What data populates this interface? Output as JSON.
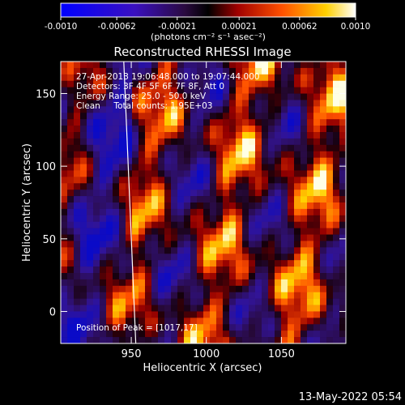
{
  "colorbar": {
    "ticks": [
      "-0.0010",
      "-0.00062",
      "-0.00021",
      "0.00021",
      "0.00062",
      "0.0010"
    ],
    "tick_values": [
      -0.001,
      -0.00062,
      -0.00021,
      0.00021,
      0.00062,
      0.001
    ],
    "range": [
      -0.001,
      0.001
    ],
    "units": "(photons cm⁻² s⁻¹ asec⁻²)"
  },
  "chart_data": {
    "type": "heatmap",
    "title": "Reconstructed RHESSI Image",
    "xlabel": "Heliocentric X (arcsec)",
    "ylabel": "Heliocentric Y (arcsec)",
    "xlim": [
      903,
      1093
    ],
    "ylim": [
      -22,
      172
    ],
    "x_ticks": [
      950,
      1000,
      1050
    ],
    "y_ticks": [
      0,
      50,
      100,
      150
    ],
    "colormap": "blue-purple-red-orange-yellow-white",
    "annotations": [
      "27-Apr-2013 19:06:48.000 to 19:07:44.000",
      "Detectors: 3F 4F 5F 6F 7F 8F, Att 0",
      "Energy Range: 25.0 - 50.0 keV",
      "Clean     Total counts: 1.95E+03"
    ],
    "peak_label": "Position of Peak = [1017,17]",
    "peak_position": [
      1017,
      17
    ],
    "limb_line": [
      [
        945,
        172
      ],
      [
        953,
        -22
      ]
    ]
  },
  "timestamp": "13-May-2022 05:54"
}
